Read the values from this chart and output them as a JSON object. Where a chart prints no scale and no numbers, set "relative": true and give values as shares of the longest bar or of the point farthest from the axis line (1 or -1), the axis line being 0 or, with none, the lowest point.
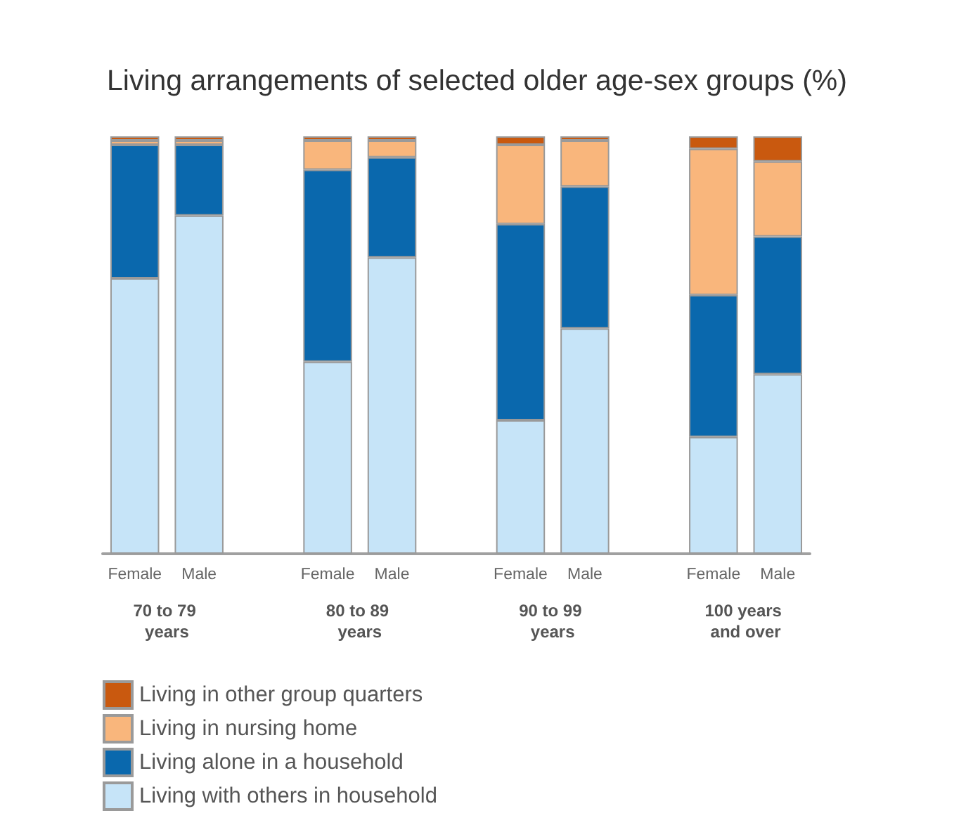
{
  "chart_data": {
    "type": "bar",
    "title": "Living arrangements of selected older age-sex groups (%)",
    "categories": [
      "Female",
      "Male",
      null,
      "Female",
      "Male",
      null,
      "Female",
      "Male",
      null,
      "Female",
      "Male"
    ],
    "relative": true,
    "stacked": true,
    "legend": "bottom left",
    "annotations": [
      "70 to 79 years",
      "80 to 89 years",
      "90 to 99 years",
      "100 years and over"
    ],
    "series": [
      {
        "name": "Living with others in household",
        "color": "#c6e4f8",
        "values": [
          0.66,
          0.81,
          null,
          0.46,
          0.71,
          null,
          0.32,
          0.54,
          null,
          0.28,
          0.43
        ]
      },
      {
        "name": "Living alone in a household",
        "color": "#0a68ad",
        "values": [
          0.32,
          0.17,
          null,
          0.46,
          0.24,
          null,
          0.47,
          0.34,
          null,
          0.34,
          0.33
        ]
      },
      {
        "name": "Living in nursing home",
        "color": "#f9b67c",
        "values": [
          0.01,
          0.01,
          null,
          0.07,
          0.04,
          null,
          0.19,
          0.11,
          null,
          0.35,
          0.18
        ]
      },
      {
        "name": "Living in other group quarters",
        "color": "#c9590f",
        "values": [
          0.01,
          0.01,
          null,
          0.01,
          0.01,
          null,
          0.02,
          0.01,
          null,
          0.03,
          0.06
        ]
      }
    ]
  }
}
